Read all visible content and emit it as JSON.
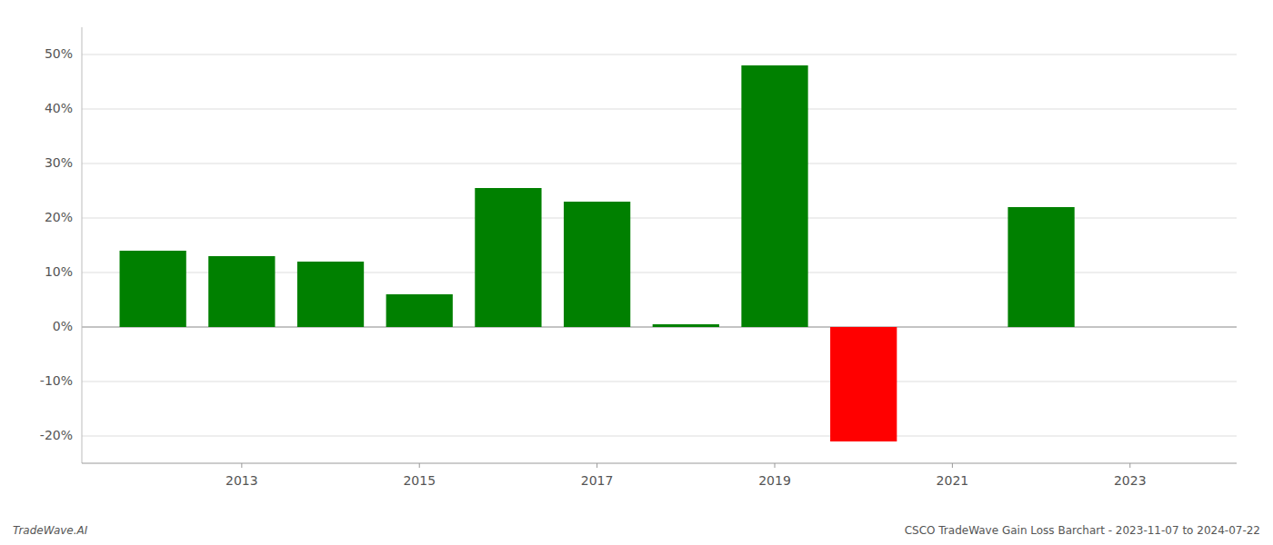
{
  "chart_data": {
    "type": "bar",
    "x": [
      2012,
      2013,
      2014,
      2015,
      2016,
      2017,
      2018,
      2019,
      2020,
      2022
    ],
    "values": [
      0.14,
      0.13,
      0.12,
      0.06,
      0.255,
      0.23,
      0.005,
      0.48,
      -0.21,
      0.22
    ],
    "colors": [
      "#008000",
      "#008000",
      "#008000",
      "#008000",
      "#008000",
      "#008000",
      "#008000",
      "#008000",
      "#ff0000",
      "#008000"
    ],
    "xlim": [
      2011.2,
      2024.2
    ],
    "xticks": [
      2013,
      2015,
      2017,
      2019,
      2021,
      2023
    ],
    "ylim": [
      -0.25,
      0.55
    ],
    "yticks": [
      {
        "value": -0.2,
        "label": "-20%"
      },
      {
        "value": -0.1,
        "label": "-10%"
      },
      {
        "value": 0.0,
        "label": "0%"
      },
      {
        "value": 0.1,
        "label": "10%"
      },
      {
        "value": 0.2,
        "label": "20%"
      },
      {
        "value": 0.3,
        "label": "30%"
      },
      {
        "value": 0.4,
        "label": "40%"
      },
      {
        "value": 0.5,
        "label": "50%"
      }
    ],
    "grid": true,
    "annotations": [
      "TradeWave.AI",
      "CSCO TradeWave Gain Loss Barchart - 2023-11-07 to 2024-07-22"
    ]
  }
}
